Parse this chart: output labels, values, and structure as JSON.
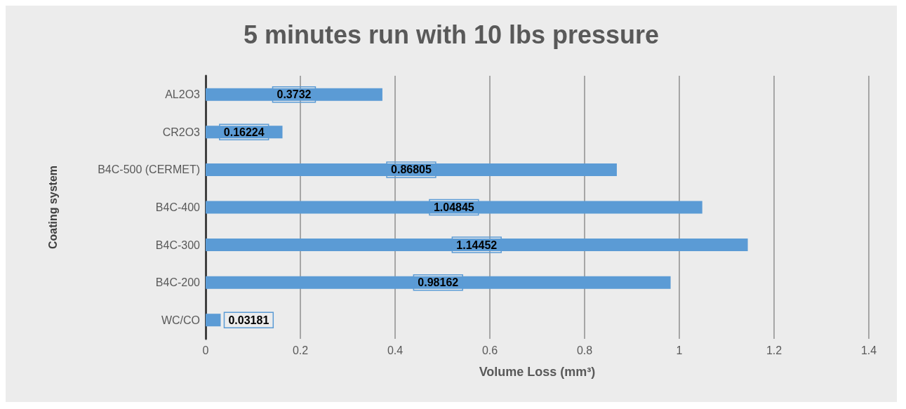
{
  "chart_data": {
    "type": "bar",
    "orientation": "horizontal",
    "title": "5 minutes run with 10 lbs pressure",
    "xlabel": "Volume Loss (mm³)",
    "ylabel": "Coating system",
    "categories": [
      "AL2O3",
      "CR2O3",
      "B4C-500 (CERMET)",
      "B4C-400",
      "B4C-300",
      "B4C-200",
      "WC/CO"
    ],
    "values": [
      0.3732,
      0.16224,
      0.86805,
      1.04845,
      1.14452,
      0.98162,
      0.03181
    ],
    "color": "#5b9bd5",
    "xlim": [
      0,
      1.4
    ],
    "xticks": [
      0,
      0.2,
      0.4,
      0.6,
      0.8,
      1,
      1.2,
      1.4
    ],
    "grid": "x",
    "data_labels": true
  }
}
